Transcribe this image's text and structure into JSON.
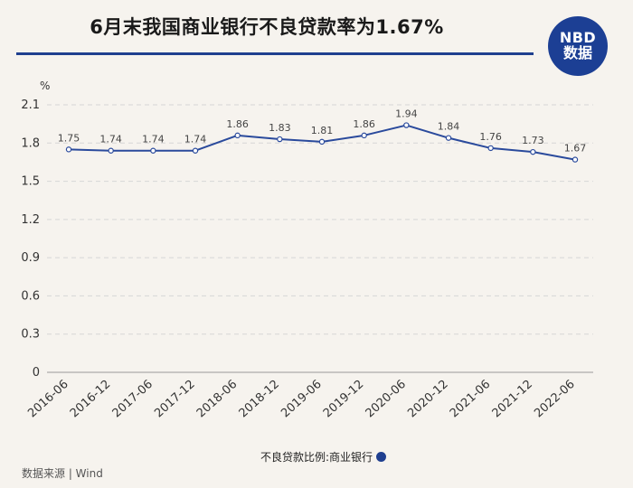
{
  "title": "6月末我国商业银行不良贷款率为1.67%",
  "logo": {
    "line1": "NBD",
    "line2": "数据"
  },
  "unit_label": "%",
  "legend_label": "不良贷款比例:商业银行",
  "source": "数据来源 | Wind",
  "colors": {
    "line": "#2a4a9c",
    "title_rule": "#1f3f8f",
    "logo_bg": "#1c3f94",
    "grid": "#d6d6d6"
  },
  "chart_data": {
    "type": "line",
    "title": "6月末我国商业银行不良贷款率为1.67%",
    "ylabel": "%",
    "xlabel": "",
    "ylim": [
      0,
      2.1
    ],
    "yticks": [
      0,
      0.3,
      0.6,
      0.9,
      1.2,
      1.5,
      1.8,
      2.1
    ],
    "ytick_labels": [
      "0",
      "0.3",
      "0.6",
      "0.9",
      "1.2",
      "1.5",
      "1.8",
      "2.1"
    ],
    "grid": true,
    "legend": "bottom",
    "categories": [
      "2016-06",
      "2016-12",
      "2017-06",
      "2017-12",
      "2018-06",
      "2018-12",
      "2019-06",
      "2019-12",
      "2020-06",
      "2020-12",
      "2021-06",
      "2021-12",
      "2022-06"
    ],
    "series": [
      {
        "name": "不良贷款比例:商业银行",
        "values": [
          1.75,
          1.74,
          1.74,
          1.74,
          1.86,
          1.83,
          1.81,
          1.86,
          1.94,
          1.84,
          1.76,
          1.73,
          1.67
        ],
        "labels": [
          "1.75",
          "1.74",
          "1.74",
          "1.74",
          "1.86",
          "1.83",
          "1.81",
          "1.86",
          "1.94",
          "1.84",
          "1.76",
          "1.73",
          "1.67"
        ]
      }
    ]
  }
}
